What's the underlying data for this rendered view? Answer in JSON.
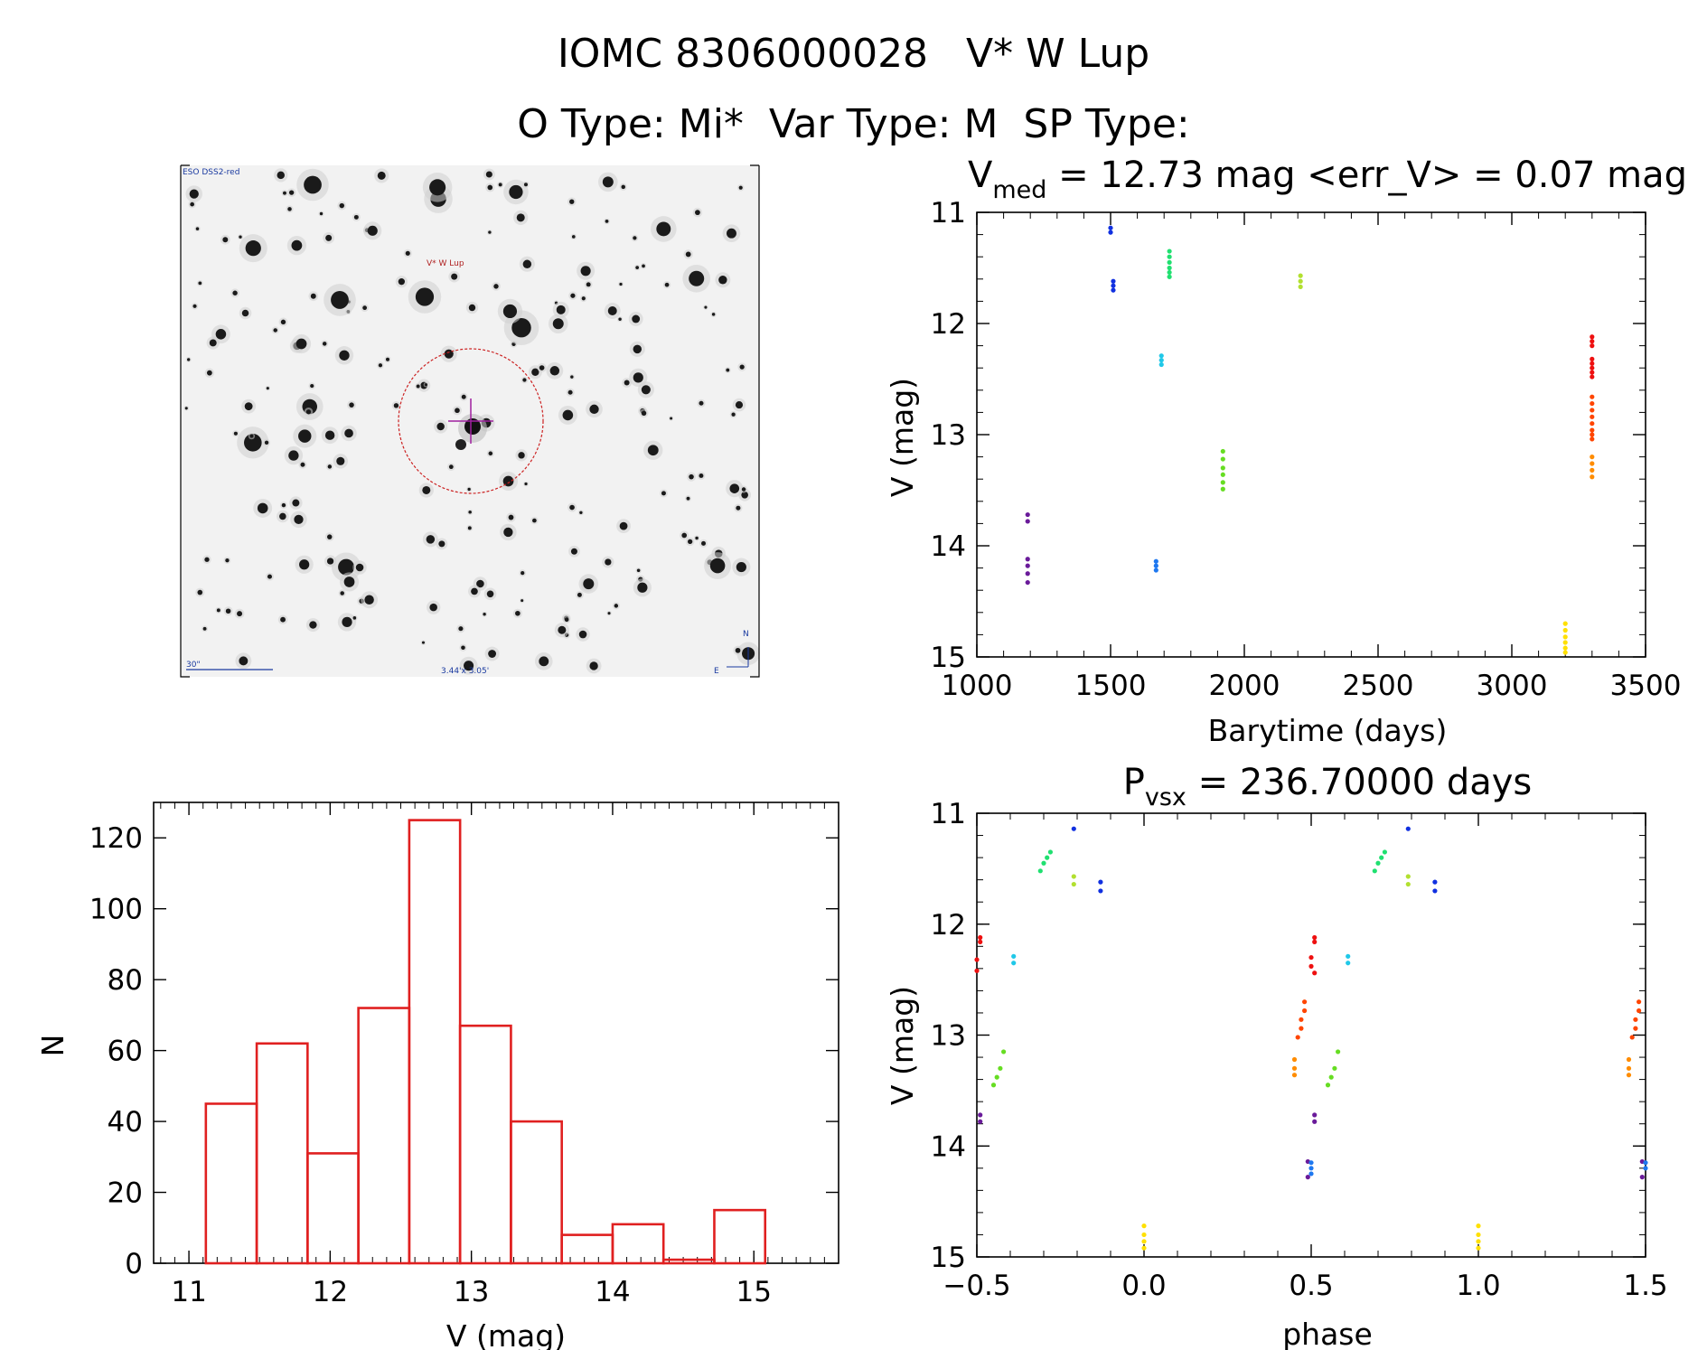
{
  "header": {
    "title": "IOMC 8306000028   V* W Lup",
    "subtitle": "O Type: Mi*  Var Type: M  SP Type:"
  },
  "finder": {
    "survey_label": "ESO DSS2-red",
    "target_label": "V* W Lup",
    "scale_label": "30\"",
    "fov_label": "3.44'x 3.05'",
    "north_label": "N",
    "east_label": "E"
  },
  "chart_data": [
    {
      "type": "scatter",
      "id": "lightcurve",
      "title": "V_med = 12.73 mag <err_V> = 0.07 mag",
      "title_main": "V",
      "title_sub": "med",
      "title_rest": " = 12.73 mag <err_V> = 0.07 mag",
      "xlabel": "Barytime (days)",
      "ylabel": "V (mag)",
      "xlim": [
        1000,
        3500
      ],
      "ylim": [
        15,
        11
      ],
      "y_inverted": true,
      "xticks": [
        1000,
        1500,
        2000,
        2500,
        3000,
        3500
      ],
      "yticks": [
        11,
        12,
        13,
        14,
        15
      ],
      "series": [
        {
          "color": "#6a1b9a",
          "x": [
            1190,
            1190,
            1190,
            1190,
            1190,
            1190
          ],
          "y": [
            13.72,
            13.78,
            14.12,
            14.18,
            14.25,
            14.33
          ]
        },
        {
          "color": "#1030e0",
          "x": [
            1500,
            1500,
            1510,
            1510,
            1510
          ],
          "y": [
            11.14,
            11.18,
            11.62,
            11.66,
            11.7
          ]
        },
        {
          "color": "#20e070",
          "x": [
            1720,
            1720,
            1720,
            1720,
            1720,
            1720
          ],
          "y": [
            11.35,
            11.4,
            11.45,
            11.5,
            11.54,
            11.58
          ]
        },
        {
          "color": "#20c8e8",
          "x": [
            1690,
            1690,
            1690
          ],
          "y": [
            12.29,
            12.33,
            12.37
          ]
        },
        {
          "color": "#1e78f0",
          "x": [
            1670,
            1670,
            1670
          ],
          "y": [
            14.14,
            14.18,
            14.22
          ]
        },
        {
          "color": "#66dd22",
          "x": [
            1920,
            1920,
            1920,
            1920,
            1920,
            1920
          ],
          "y": [
            13.15,
            13.22,
            13.3,
            13.36,
            13.43,
            13.49
          ]
        },
        {
          "color": "#b2e030",
          "x": [
            2210,
            2210,
            2210
          ],
          "y": [
            11.57,
            11.62,
            11.67
          ]
        },
        {
          "color": "#ffe000",
          "x": [
            3200,
            3200,
            3200,
            3200,
            3200,
            3200
          ],
          "y": [
            14.7,
            14.76,
            14.82,
            14.87,
            14.92,
            14.96
          ]
        },
        {
          "color": "#ff8c00",
          "x": [
            3300,
            3300,
            3300,
            3300
          ],
          "y": [
            13.2,
            13.26,
            13.32,
            13.38
          ]
        },
        {
          "color": "#ff4500",
          "x": [
            3300,
            3300,
            3300,
            3300,
            3300,
            3300,
            3300,
            3300
          ],
          "y": [
            12.66,
            12.72,
            12.78,
            12.84,
            12.9,
            12.96,
            13.0,
            13.04
          ]
        },
        {
          "color": "#ee1010",
          "x": [
            3300,
            3300,
            3300,
            3300,
            3300,
            3300,
            3300,
            3300
          ],
          "y": [
            12.12,
            12.16,
            12.2,
            12.32,
            12.36,
            12.4,
            12.44,
            12.48
          ]
        }
      ]
    },
    {
      "type": "bar",
      "id": "histogram",
      "title": "",
      "xlabel": "V (mag)",
      "ylabel": "N",
      "xlim": [
        10.75,
        15.6
      ],
      "ylim": [
        0,
        130
      ],
      "xticks": [
        11,
        12,
        13,
        14,
        15
      ],
      "yticks": [
        0,
        20,
        40,
        60,
        80,
        100,
        120
      ],
      "bin_width": 0.36,
      "bin_starts": [
        11.12,
        11.48,
        11.84,
        12.2,
        12.56,
        12.92,
        13.28,
        13.64,
        14.0,
        14.36,
        14.72
      ],
      "values": [
        45,
        62,
        31,
        72,
        125,
        67,
        40,
        8,
        11,
        1,
        15
      ],
      "color": "#e02020"
    },
    {
      "type": "scatter",
      "id": "phased",
      "title": "P_vsx = 236.70000 days",
      "title_main": "P",
      "title_sub": "vsx",
      "title_rest": " = 236.70000 days",
      "xlabel": "phase",
      "ylabel": "V (mag)",
      "xlim": [
        -0.5,
        1.5
      ],
      "ylim": [
        15,
        11
      ],
      "y_inverted": true,
      "xticks": [
        -0.5,
        0.0,
        0.5,
        1.0,
        1.5
      ],
      "xtick_labels": [
        "−0.5",
        "0.0",
        "0.5",
        "1.0",
        "1.5"
      ],
      "yticks": [
        11,
        12,
        13,
        14,
        15
      ],
      "series": [
        {
          "color": "#6a1b9a",
          "x": [
            -0.49,
            -0.49,
            0.49,
            0.49,
            0.51,
            0.51,
            1.49,
            1.49
          ],
          "y": [
            13.72,
            13.78,
            14.14,
            14.28,
            13.72,
            13.78,
            14.14,
            14.28
          ]
        },
        {
          "color": "#1030e0",
          "x": [
            -0.21,
            -0.13,
            -0.13,
            0.79,
            0.87,
            0.87
          ],
          "y": [
            11.14,
            11.62,
            11.7,
            11.14,
            11.62,
            11.7
          ]
        },
        {
          "color": "#20e070",
          "x": [
            -0.31,
            -0.3,
            -0.29,
            -0.28,
            0.69,
            0.7,
            0.71,
            0.72
          ],
          "y": [
            11.52,
            11.45,
            11.4,
            11.35,
            11.52,
            11.45,
            11.4,
            11.35
          ]
        },
        {
          "color": "#20c8e8",
          "x": [
            -0.39,
            -0.39,
            0.61,
            0.61
          ],
          "y": [
            12.29,
            12.35,
            12.29,
            12.35
          ]
        },
        {
          "color": "#1e78f0",
          "x": [
            0.5,
            0.5,
            0.5,
            1.5,
            1.5
          ],
          "y": [
            14.15,
            14.2,
            14.25,
            14.15,
            14.2
          ]
        },
        {
          "color": "#66dd22",
          "x": [
            -0.45,
            -0.44,
            -0.43,
            -0.42,
            0.55,
            0.56,
            0.57,
            0.58
          ],
          "y": [
            13.45,
            13.38,
            13.3,
            13.15,
            13.45,
            13.38,
            13.3,
            13.15
          ]
        },
        {
          "color": "#b2e030",
          "x": [
            -0.21,
            -0.21,
            0.79,
            0.79
          ],
          "y": [
            11.57,
            11.64,
            11.57,
            11.64
          ]
        },
        {
          "color": "#ffe000",
          "x": [
            0.0,
            0.0,
            0.0,
            0.0,
            1.0,
            1.0,
            1.0,
            1.0
          ],
          "y": [
            14.72,
            14.8,
            14.86,
            14.92,
            14.72,
            14.8,
            14.86,
            14.92
          ]
        },
        {
          "color": "#ff8c00",
          "x": [
            0.45,
            0.45,
            0.45,
            1.45,
            1.45,
            1.45
          ],
          "y": [
            13.22,
            13.3,
            13.36,
            13.22,
            13.3,
            13.36
          ]
        },
        {
          "color": "#ff4500",
          "x": [
            0.46,
            0.47,
            0.47,
            0.48,
            0.48,
            1.46,
            1.47,
            1.47,
            1.48,
            1.48
          ],
          "y": [
            13.02,
            12.94,
            12.86,
            12.78,
            12.7,
            13.02,
            12.94,
            12.86,
            12.78,
            12.7
          ]
        },
        {
          "color": "#ee1010",
          "x": [
            -0.5,
            -0.5,
            -0.49,
            -0.49,
            0.5,
            0.5,
            0.51,
            0.51,
            0.51
          ],
          "y": [
            12.32,
            12.42,
            12.12,
            12.16,
            12.3,
            12.38,
            12.44,
            12.12,
            12.16
          ]
        }
      ]
    }
  ]
}
